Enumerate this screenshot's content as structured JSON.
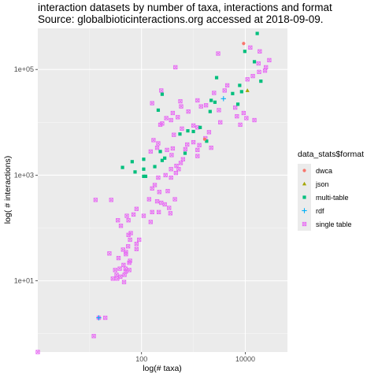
{
  "chart_data": {
    "type": "scatter",
    "title": "interaction datasets by number of taxa, interactions and format",
    "subtitle": "Source: globalbioticinteractions.org accessed at 2018-09-09.",
    "xlabel": "log(# taxa)",
    "ylabel": "log( # interactions)",
    "x_scale": "log10",
    "y_scale": "log10",
    "xlim": [
      1,
      65000
    ],
    "ylim": [
      0.45,
      600000
    ],
    "x_ticks": [
      {
        "value": 100,
        "label": "100"
      },
      {
        "value": 10000,
        "label": "10000"
      }
    ],
    "y_ticks": [
      {
        "value": 10,
        "label": "1e+01"
      },
      {
        "value": 1000,
        "label": "1e+03"
      },
      {
        "value": 100000,
        "label": "1e+05"
      }
    ],
    "grid": true,
    "legend_title": "data_stats$format",
    "legend_position": "right",
    "series": [
      {
        "name": "dwca",
        "color": "#F8766D",
        "shape": "circle",
        "points": [
          [
            9300,
            310000
          ],
          [
            1650,
            4800
          ]
        ]
      },
      {
        "name": "json",
        "color": "#A3A500",
        "shape": "triangle",
        "points": [
          [
            11000,
            40000
          ]
        ]
      },
      {
        "name": "multi-table",
        "color": "#00BF7D",
        "shape": "square",
        "points": [
          [
            17000,
            480000
          ],
          [
            9800,
            220000
          ],
          [
            15000,
            140000
          ],
          [
            20000,
            60000
          ],
          [
            2800,
            70000
          ],
          [
            7800,
            50000
          ],
          [
            8500,
            38000
          ],
          [
            5700,
            35000
          ],
          [
            2200,
            26000
          ],
          [
            2600,
            24000
          ],
          [
            7200,
            22000
          ],
          [
            250,
            34000
          ],
          [
            2100,
            16000
          ],
          [
            210,
            17000
          ],
          [
            1350,
            8000
          ],
          [
            780,
            6900
          ],
          [
            1000,
            6700
          ],
          [
            1800,
            4400
          ],
          [
            230,
            2800
          ],
          [
            690,
            2600
          ],
          [
            280,
            2100
          ],
          [
            110,
            2000
          ],
          [
            250,
            1900
          ],
          [
            66,
            1800
          ],
          [
            180,
            1450
          ],
          [
            43,
            1400
          ],
          [
            110,
            1300
          ],
          [
            75,
            1150
          ],
          [
            120,
            950
          ],
          [
            110,
            950
          ],
          [
            550,
            6000
          ]
        ]
      },
      {
        "name": "rdf",
        "color": "#00B0F6",
        "shape": "plus",
        "points": [
          [
            3800,
            28000
          ],
          [
            15,
            2
          ]
        ]
      },
      {
        "name": "single table",
        "color": "#E76BF3",
        "shape": "boxx",
        "points": [
          [
            1,
            0.45
          ],
          [
            12,
            0.9
          ],
          [
            15,
            2
          ],
          [
            20,
            2
          ],
          [
            13,
            340
          ],
          [
            26,
            340
          ],
          [
            450,
            110000
          ],
          [
            3000,
            200000
          ],
          [
            12500,
            260000
          ],
          [
            19000,
            220000
          ],
          [
            29000,
            150000
          ],
          [
            25000,
            110000
          ],
          [
            24000,
            95000
          ],
          [
            14000,
            75000
          ],
          [
            11000,
            65000
          ],
          [
            18000,
            130000
          ],
          [
            18500,
            90000
          ],
          [
            4500,
            50000
          ],
          [
            4000,
            40000
          ],
          [
            2500,
            36000
          ],
          [
            1200,
            26000
          ],
          [
            240,
            40000
          ],
          [
            160,
            23000
          ],
          [
            560,
            25000
          ],
          [
            580,
            20000
          ],
          [
            800,
            16000
          ],
          [
            1400,
            20000
          ],
          [
            6400,
            19000
          ],
          [
            3100,
            17000
          ],
          [
            1750,
            21000
          ],
          [
            9300,
            15000
          ],
          [
            6900,
            13000
          ],
          [
            10500,
            12000
          ],
          [
            15000,
            11000
          ],
          [
            8000,
            9000
          ],
          [
            3300,
            10000
          ],
          [
            1000,
            8700
          ],
          [
            600,
            7600
          ],
          [
            400,
            15000
          ],
          [
            300,
            12000
          ],
          [
            500,
            12500
          ],
          [
            370,
            11000
          ],
          [
            250,
            9500
          ],
          [
            230,
            9000
          ],
          [
            420,
            5800
          ],
          [
            1200,
            8000
          ],
          [
            2000,
            6500
          ],
          [
            1700,
            5000
          ],
          [
            1000,
            4200
          ],
          [
            1300,
            3700
          ],
          [
            2200,
            3300
          ],
          [
            1200,
            3000
          ],
          [
            760,
            3800
          ],
          [
            700,
            3100
          ],
          [
            400,
            3200
          ],
          [
            210,
            4000
          ],
          [
            170,
            4600
          ],
          [
            200,
            3300
          ],
          [
            150,
            2800
          ],
          [
            310,
            3000
          ],
          [
            380,
            2400
          ],
          [
            1200,
            2300
          ],
          [
            630,
            2000
          ],
          [
            570,
            1700
          ],
          [
            470,
            1500
          ],
          [
            370,
            1300
          ],
          [
            290,
            1000
          ],
          [
            370,
            900
          ],
          [
            460,
            1100
          ],
          [
            520,
            1300
          ],
          [
            210,
            900
          ],
          [
            180,
            650
          ],
          [
            160,
            560
          ],
          [
            220,
            480
          ],
          [
            320,
            500
          ],
          [
            140,
            350
          ],
          [
            240,
            300
          ],
          [
            280,
            280
          ],
          [
            440,
            350
          ],
          [
            340,
            240
          ],
          [
            360,
            190
          ],
          [
            80,
            230
          ],
          [
            70,
            180
          ],
          [
            110,
            170
          ],
          [
            150,
            130
          ],
          [
            215,
            200
          ],
          [
            200,
            320
          ],
          [
            160,
            200
          ],
          [
            52,
            170
          ],
          [
            56,
            140
          ],
          [
            35,
            140
          ],
          [
            40,
            110
          ],
          [
            62,
            80
          ],
          [
            56,
            74
          ],
          [
            60,
            60
          ],
          [
            80,
            50
          ],
          [
            55,
            45
          ],
          [
            44,
            39
          ],
          [
            50,
            35
          ],
          [
            24,
            33
          ],
          [
            50,
            32
          ],
          [
            60,
            24
          ],
          [
            58,
            22
          ],
          [
            36,
            27
          ],
          [
            45,
            20
          ],
          [
            38,
            17
          ],
          [
            49,
            17
          ],
          [
            31,
            16
          ],
          [
            50,
            15
          ],
          [
            58,
            16
          ],
          [
            47,
            13
          ],
          [
            39,
            12
          ],
          [
            28,
            11
          ],
          [
            33,
            13
          ],
          [
            34,
            11
          ],
          [
            46,
            9.5
          ],
          [
            80,
            40
          ],
          [
            90,
            60
          ]
        ]
      }
    ]
  }
}
